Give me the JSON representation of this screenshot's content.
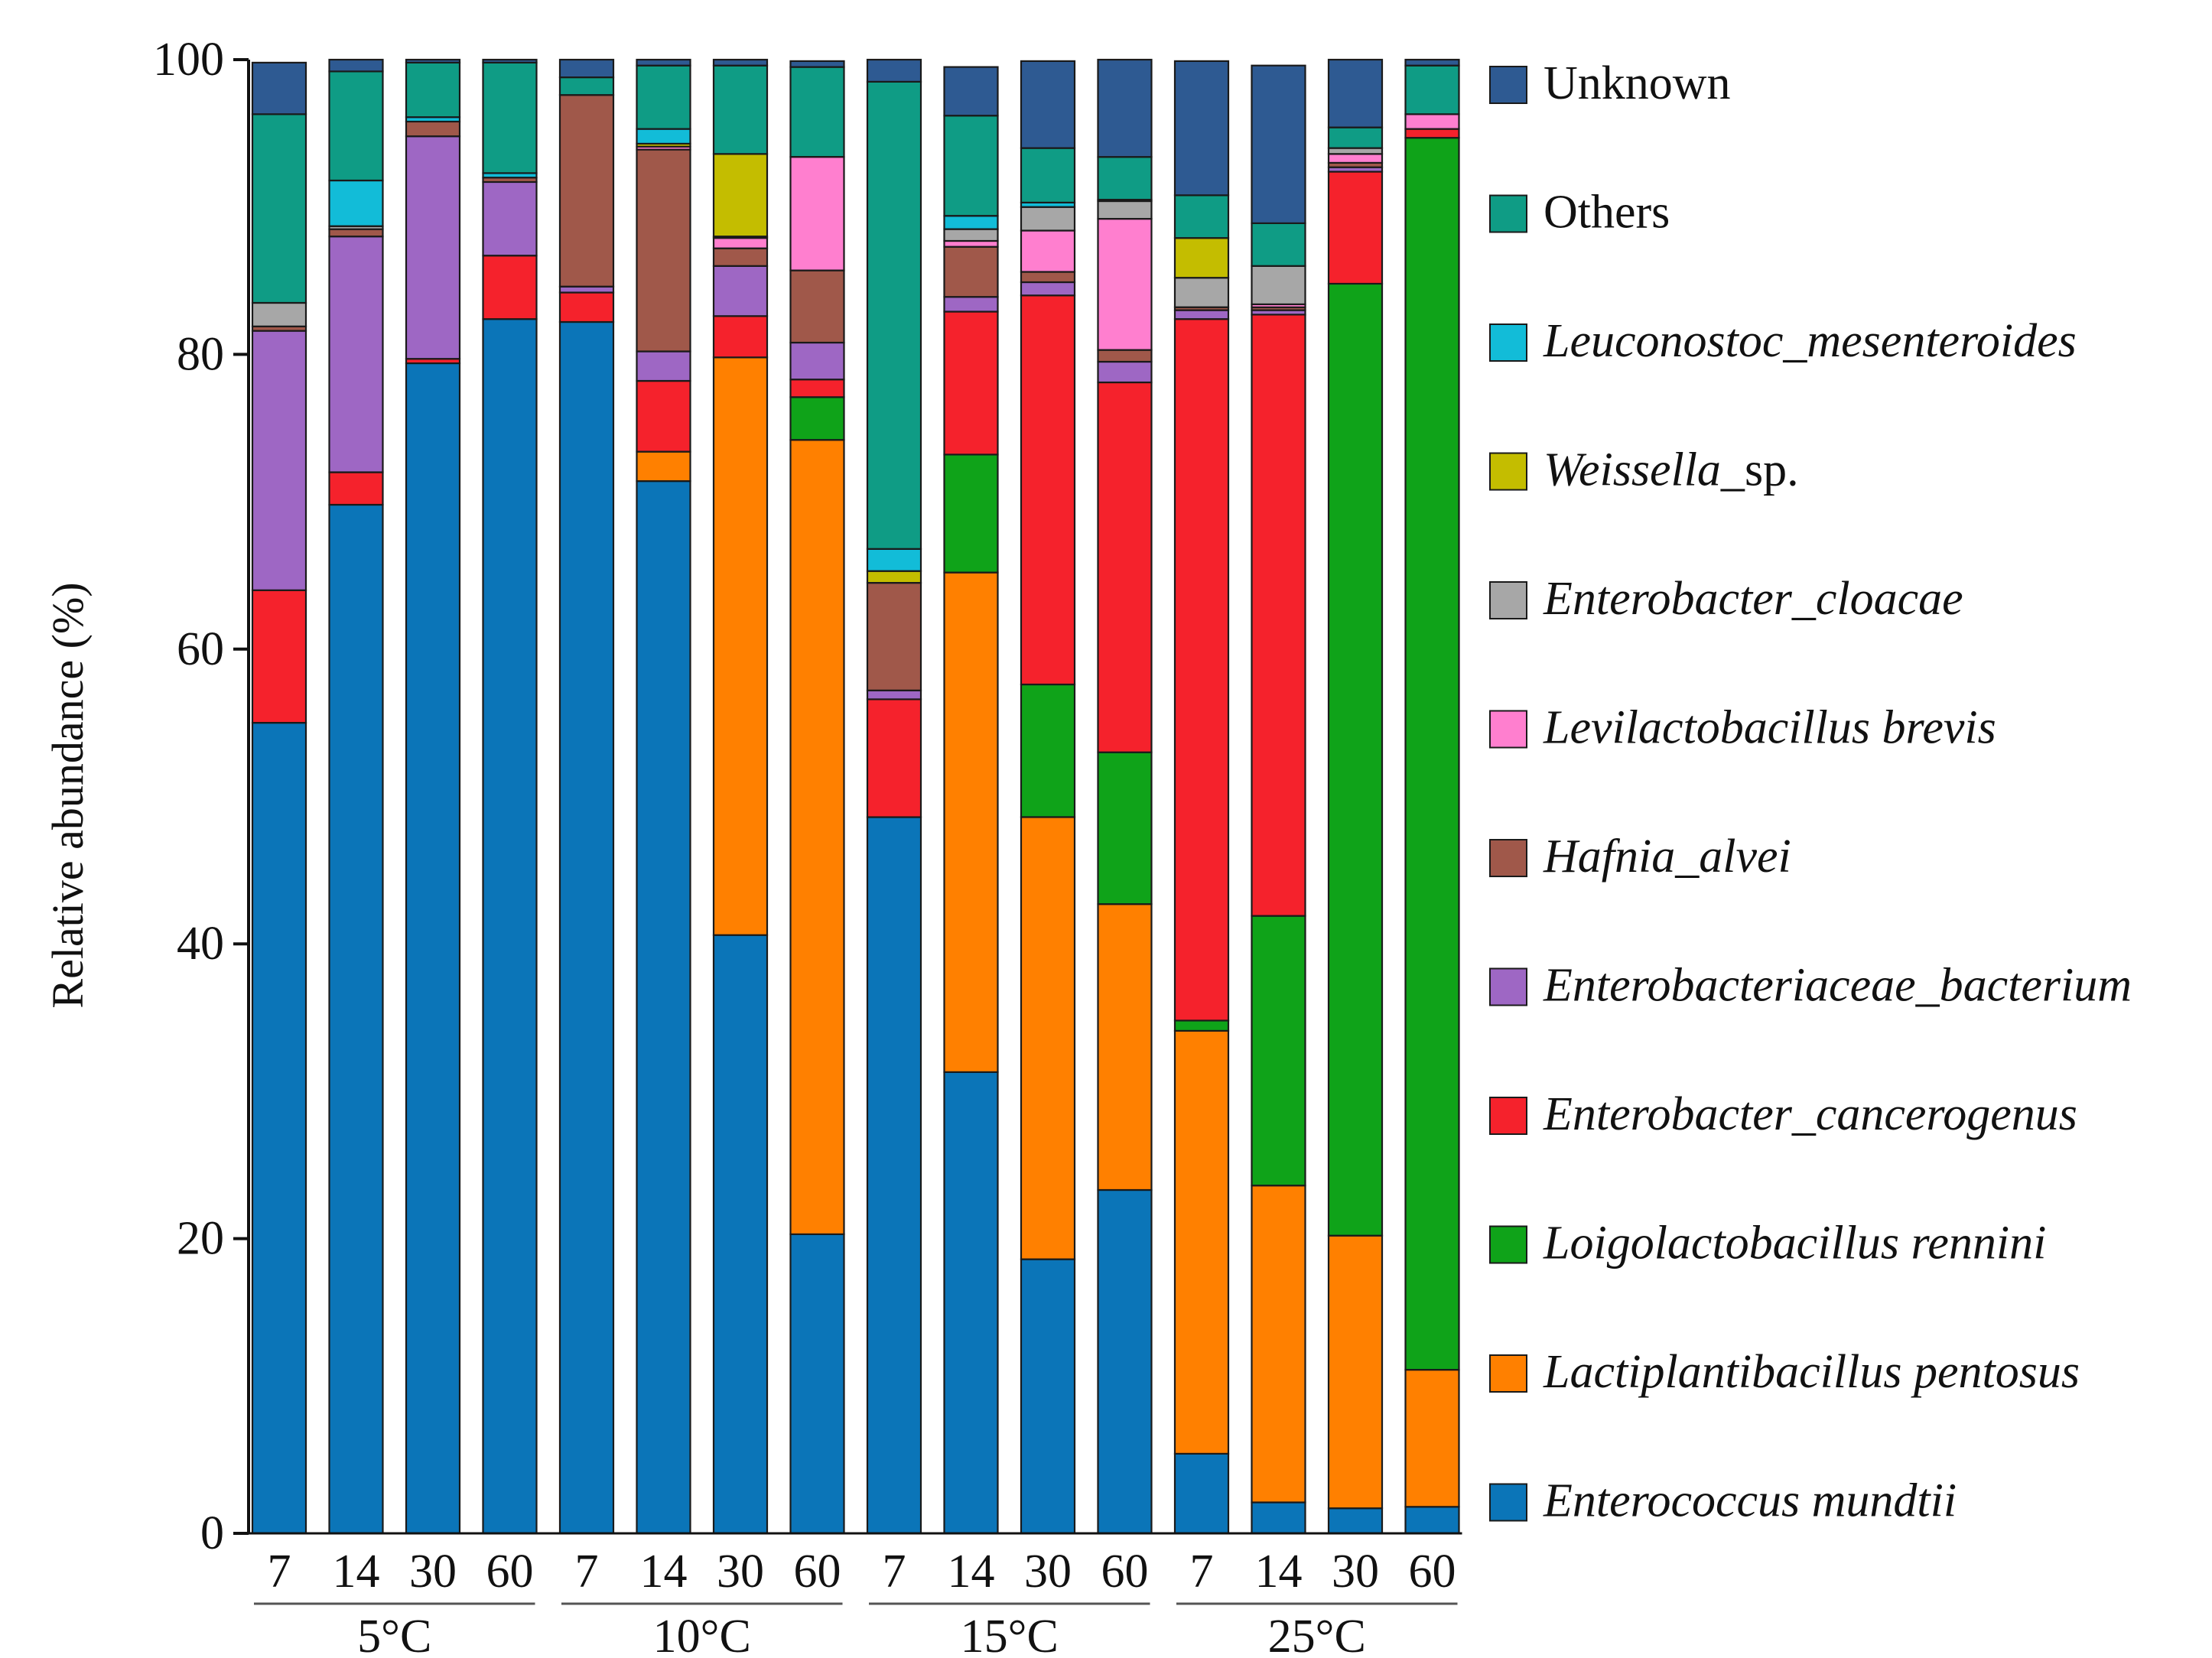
{
  "chart_data": {
    "type": "bar",
    "stacked": true,
    "ylabel": "Relative abundance (%)",
    "ylim": [
      0,
      100
    ],
    "yticks": [
      0,
      20,
      40,
      60,
      80,
      100
    ],
    "categories": [
      "7",
      "14",
      "30",
      "60",
      "7",
      "14",
      "30",
      "60",
      "7",
      "14",
      "30",
      "60",
      "7",
      "14",
      "30",
      "60"
    ],
    "groups": [
      {
        "label": "5°C",
        "start": 0,
        "end": 3
      },
      {
        "label": "10°C",
        "start": 4,
        "end": 7
      },
      {
        "label": "15°C",
        "start": 8,
        "end": 11
      },
      {
        "label": "25°C",
        "start": 12,
        "end": 15
      }
    ],
    "series": [
      {
        "name": "Enterococcus mundtii",
        "display": "Enterococcus mundtii",
        "italic": true,
        "color": "#0b75b8",
        "values": [
          55.0,
          69.8,
          79.4,
          82.4,
          82.2,
          71.4,
          40.6,
          20.3,
          48.6,
          31.3,
          18.6,
          23.3,
          5.4,
          2.1,
          1.7,
          1.8
        ]
      },
      {
        "name": "Lactiplantibacillus pentosus",
        "display": "Lactiplantibacillus pentosus",
        "italic": true,
        "color": "#ff8000",
        "values": [
          0,
          0,
          0,
          0,
          0,
          2.0,
          39.2,
          53.9,
          0,
          33.9,
          30.0,
          19.4,
          28.7,
          21.5,
          18.5,
          9.3
        ]
      },
      {
        "name": "Loigolactobacillus rennini",
        "display": "Loigolactobacillus rennini",
        "italic": true,
        "color": "#0fa319",
        "values": [
          0,
          0,
          0,
          0,
          0,
          0,
          0,
          2.9,
          0,
          8.0,
          9.0,
          10.3,
          0.7,
          18.3,
          64.6,
          83.6
        ]
      },
      {
        "name": "Enterobacter cancerogenus",
        "display": "Enterobacter_cancerogenus",
        "italic": true,
        "color": "#f5222c",
        "values": [
          9.0,
          2.2,
          0.3,
          4.3,
          2.0,
          4.8,
          2.8,
          1.2,
          8.0,
          9.7,
          26.4,
          25.1,
          47.6,
          40.8,
          7.6,
          0.6
        ]
      },
      {
        "name": "Enterobacteriaceae bacterium",
        "display": "Enterobacteriaceae_bacterium",
        "italic": true,
        "color": "#9e67c4",
        "values": [
          17.6,
          16.0,
          15.1,
          5.0,
          0.4,
          2.0,
          3.4,
          2.5,
          0.6,
          1.0,
          0.9,
          1.4,
          0.6,
          0.3,
          0.3,
          0
        ]
      },
      {
        "name": "Hafnia alvei",
        "display": "Hafnia_alvei",
        "italic": true,
        "color": "#a0584a",
        "values": [
          0.3,
          0.5,
          1.0,
          0.3,
          13.0,
          13.7,
          1.2,
          4.9,
          7.3,
          3.4,
          0.7,
          0.8,
          0.2,
          0.2,
          0.3,
          0
        ]
      },
      {
        "name": "Levilactobacillus brevis",
        "display": "Levilactobacillus brevis",
        "italic": true,
        "color": "#ff7fcf",
        "values": [
          0,
          0,
          0,
          0,
          0,
          0.2,
          0.7,
          7.7,
          0,
          0.4,
          2.8,
          8.9,
          0,
          0.2,
          0.6,
          1.0
        ]
      },
      {
        "name": "Enterobacter cloacae",
        "display": "Enterobacter_cloacae",
        "italic": true,
        "color": "#a7a7a7",
        "values": [
          1.6,
          0.2,
          0,
          0,
          0,
          0,
          0.1,
          0,
          0,
          0.8,
          1.6,
          1.2,
          2.0,
          2.6,
          0.4,
          0
        ]
      },
      {
        "name": "Weissella sp.",
        "display": "Weissella_sp.",
        "italic": true,
        "color": "#c4bd00",
        "values": [
          0,
          0,
          0,
          0,
          0,
          0.2,
          5.6,
          0,
          0.8,
          0,
          0,
          0,
          2.7,
          0,
          0,
          0
        ]
      },
      {
        "name": "Leuconostoc mesenteroides",
        "display": "Leuconostoc_mesenteroides",
        "italic": true,
        "color": "#12bcd8",
        "values": [
          0,
          3.1,
          0.3,
          0.3,
          0,
          1.0,
          0,
          0,
          1.5,
          0.9,
          0.3,
          0.1,
          0,
          0,
          0,
          0
        ]
      },
      {
        "name": "Others",
        "display": "Others",
        "italic": false,
        "color": "#0f9c85",
        "values": [
          12.8,
          7.4,
          3.7,
          7.5,
          1.2,
          4.3,
          6.0,
          6.1,
          31.7,
          6.8,
          3.7,
          2.9,
          2.9,
          2.9,
          1.4,
          3.3
        ]
      },
      {
        "name": "Unknown",
        "display": "Unknown",
        "italic": false,
        "color": "#2e5a92",
        "values": [
          3.5,
          0.8,
          0.2,
          0.2,
          1.2,
          0.4,
          0.4,
          0.4,
          1.5,
          3.3,
          5.9,
          6.6,
          9.1,
          10.7,
          4.6,
          0.4
        ]
      }
    ]
  }
}
